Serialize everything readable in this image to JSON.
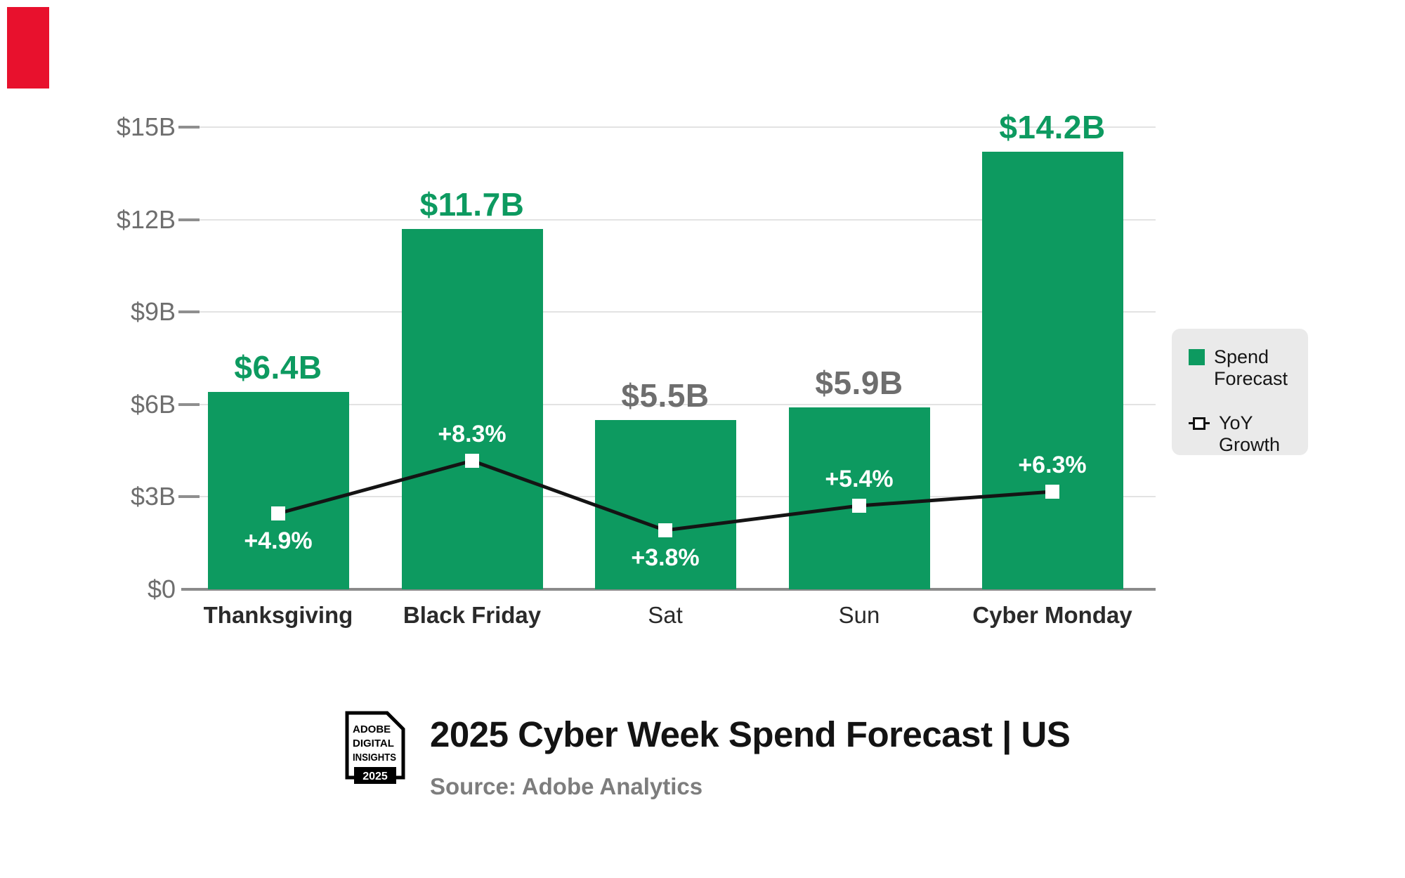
{
  "chart_data": {
    "type": "bar",
    "title": "2025 Cyber Week Spend Forecast | US",
    "source": "Source: Adobe Analytics",
    "categories": [
      "Thanksgiving",
      "Black Friday",
      "Sat",
      "Sun",
      "Cyber Monday"
    ],
    "category_emphasis": [
      true,
      true,
      false,
      false,
      true
    ],
    "series": [
      {
        "name": "Spend Forecast",
        "type": "bar",
        "unit": "$B",
        "values": [
          6.4,
          11.7,
          5.5,
          5.9,
          14.2
        ],
        "labels": [
          "$6.4B",
          "$11.7B",
          "$5.5B",
          "$5.9B",
          "$14.2B"
        ],
        "label_emphasis": [
          true,
          true,
          false,
          false,
          true
        ]
      },
      {
        "name": "YoY Growth",
        "type": "line",
        "unit": "%",
        "values": [
          4.9,
          8.3,
          3.8,
          5.4,
          6.3
        ],
        "labels": [
          "+4.9%",
          "+8.3%",
          "+3.8%",
          "+5.4%",
          "+6.3%"
        ],
        "label_position": [
          "below",
          "above",
          "below",
          "above",
          "above"
        ]
      }
    ],
    "y_axis": {
      "ticks": [
        "$15B",
        "$12B",
        "$9B",
        "$6B",
        "$3B",
        "$0"
      ],
      "values": [
        15,
        12,
        9,
        6,
        3,
        0
      ],
      "range": [
        0,
        15
      ],
      "grid": true
    },
    "legend_position": "right"
  },
  "title_block": {
    "title": "2025 Cyber Week Spend Forecast | US",
    "source": "Source: Adobe Analytics"
  },
  "logo": {
    "line1": "ADOBE",
    "line2": "DIGITAL",
    "line3": "INSIGHTS",
    "year": "2025"
  },
  "colors": {
    "bar": "#0D9A60",
    "value_label_green": "#0D9A60",
    "value_label_gray": "#6E6E6E",
    "axis_label": "#6E6E6E",
    "grid_line": "#E3E3E3",
    "axis_line": "#8A8A8A",
    "tick": "#8F8F8F",
    "line": "#141414",
    "marker_fill": "#FFFFFF",
    "category_label": "#2A2A2A",
    "growth_label": "#FFFFFF",
    "legend_bg": "#EAEAEA",
    "legend_text": "#161616",
    "title": "#131313",
    "source": "#7D7D7D",
    "red_marker": "#E8112D"
  }
}
